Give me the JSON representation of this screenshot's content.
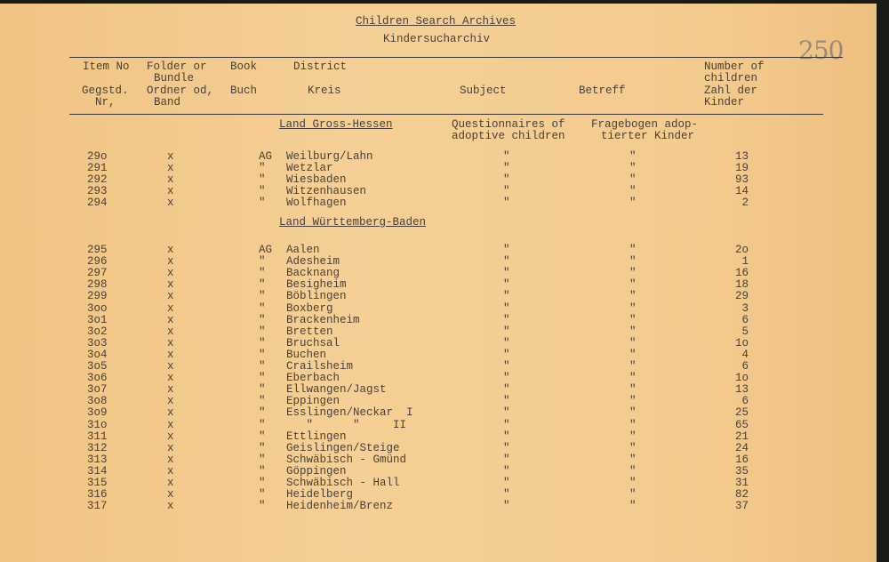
{
  "header": {
    "title": "Children Search Archives",
    "subtitle": "Kindersucharchiv",
    "page_number": "250"
  },
  "columns": {
    "item_en": "Item No",
    "item_de1": "Gegstd.",
    "item_de2": "Nr,",
    "folder_en1": "Folder or",
    "folder_en2": "Bundle",
    "folder_de1": "Ordner od,",
    "folder_de2": "Band",
    "book_en": "Book",
    "book_de": "Buch",
    "district_en": "District",
    "district_de": "Kreis",
    "subject": "Subject",
    "betreff": "Betreff",
    "count1": "Number of",
    "count2": "children",
    "count3": "Zahl der",
    "count4": "Kinder"
  },
  "sections": [
    {
      "heading": "Land Gross-Hessen",
      "subject1": "Questionnaires of",
      "subject2": "adoptive children",
      "betreff1": "Fragebogen adop-",
      "betreff2": "tierter Kinder",
      "rows": [
        [
          "29o",
          "x",
          "AG",
          "Weilburg/Lahn",
          "\"",
          "\"",
          "13"
        ],
        [
          "291",
          "x",
          "\"",
          "Wetzlar",
          "\"",
          "\"",
          "19"
        ],
        [
          "292",
          "x",
          "\"",
          "Wiesbaden",
          "\"",
          "\"",
          "93"
        ],
        [
          "293",
          "x",
          "\"",
          "Witzenhausen",
          "\"",
          "\"",
          "14"
        ],
        [
          "294",
          "x",
          "\"",
          "Wolfhagen",
          "\"",
          "\"",
          "2"
        ]
      ]
    },
    {
      "heading": "Land Württemberg-Baden",
      "rows": [
        [
          "295",
          "x",
          "AG",
          "Aalen",
          "\"",
          "\"",
          "2o"
        ],
        [
          "296",
          "x",
          "\"",
          "Adesheim",
          "\"",
          "\"",
          "1"
        ],
        [
          "297",
          "x",
          "\"",
          "Backnang",
          "\"",
          "\"",
          "16"
        ],
        [
          "298",
          "x",
          "\"",
          "Besigheim",
          "\"",
          "\"",
          "18"
        ],
        [
          "299",
          "x",
          "\"",
          "Böblingen",
          "\"",
          "\"",
          "29"
        ],
        [
          "3oo",
          "x",
          "\"",
          "Boxberg",
          "\"",
          "\"",
          "3"
        ],
        [
          "3o1",
          "x",
          "\"",
          "Brackenheim",
          "\"",
          "\"",
          "6"
        ],
        [
          "3o2",
          "x",
          "\"",
          "Bretten",
          "\"",
          "\"",
          "5"
        ],
        [
          "3o3",
          "x",
          "\"",
          "Bruchsal",
          "\"",
          "\"",
          "1o"
        ],
        [
          "3o4",
          "x",
          "\"",
          "Buchen",
          "\"",
          "\"",
          "4"
        ],
        [
          "3o5",
          "x",
          "\"",
          "Crailsheim",
          "\"",
          "\"",
          "6"
        ],
        [
          "3o6",
          "x",
          "\"",
          "Eberbach",
          "\"",
          "\"",
          "1o"
        ],
        [
          "3o7",
          "x",
          "\"",
          "Ellwangen/Jagst",
          "\"",
          "\"",
          "13"
        ],
        [
          "3o8",
          "x",
          "\"",
          "Eppingen",
          "\"",
          "\"",
          "6"
        ],
        [
          "3o9",
          "x",
          "\"",
          "Esslingen/Neckar  I",
          "\"",
          "\"",
          "25"
        ],
        [
          "31o",
          "x",
          "\"",
          "   \"      \"     II",
          "\"",
          "\"",
          "65"
        ],
        [
          "311",
          "x",
          "\"",
          "Ettlingen",
          "\"",
          "\"",
          "21"
        ],
        [
          "312",
          "x",
          "\"",
          "Geislingen/Steige",
          "\"",
          "\"",
          "24"
        ],
        [
          "313",
          "x",
          "\"",
          "Schwäbisch - Gmünd",
          "\"",
          "\"",
          "16"
        ],
        [
          "314",
          "x",
          "\"",
          "Göppingen",
          "\"",
          "\"",
          "35"
        ],
        [
          "315",
          "x",
          "\"",
          "Schwäbisch - Hall",
          "\"",
          "\"",
          "31"
        ],
        [
          "316",
          "x",
          "\"",
          "Heidelberg",
          "\"",
          "\"",
          "82"
        ],
        [
          "317",
          "x",
          "\"",
          "Heidenheim/Brenz",
          "\"",
          "\"",
          "37"
        ]
      ]
    }
  ]
}
